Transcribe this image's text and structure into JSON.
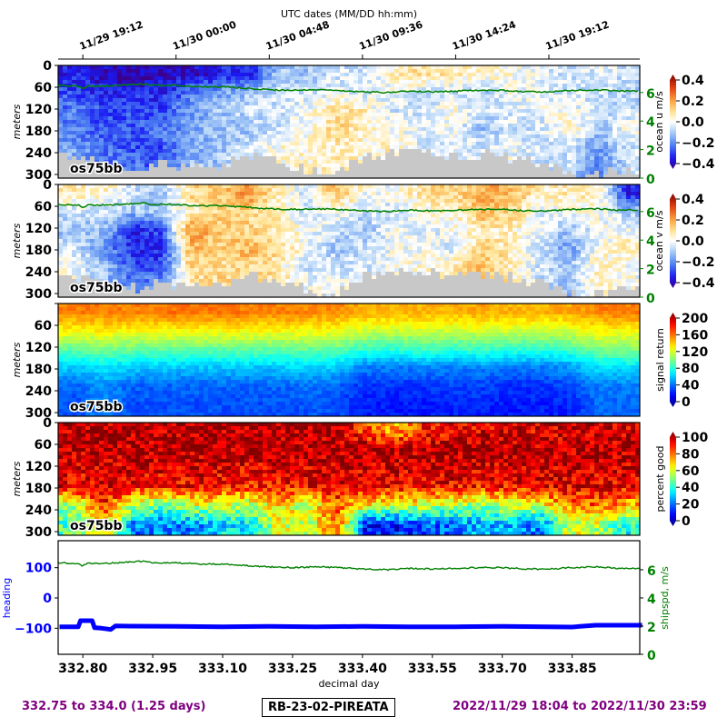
{
  "header": {
    "top_axis_title": "UTC dates (MM/DD hh:mm)",
    "date_ticks": [
      "11/29 19:12",
      "11/30 00:00",
      "11/30 04:48",
      "11/30 09:36",
      "11/30 14:24",
      "11/30 19:12"
    ]
  },
  "footer": {
    "range_text": "332.75 to 334.0 (1.25 days)",
    "cruise": "RB-23-02-PIREATA",
    "dates_text": "2022/11/29 18:04 to 2022/11/30 23:59"
  },
  "colors": {
    "green": "#008000",
    "blue": "#0000ff",
    "purple": "#800080",
    "nodata": "#c8c8c8"
  },
  "chart_data": [
    {
      "type": "heatmap",
      "title": "ocean u",
      "instrument": "os75bb",
      "ylabel": "meters",
      "colorbar_label": "ocean u m/s",
      "clim": [
        -0.4,
        0.4
      ],
      "colorbar_ticks": [
        "0.4",
        "0.2",
        "0.0",
        "−0.2",
        "−0.4"
      ],
      "right_axis": {
        "ticks": [
          "0",
          "2",
          "4",
          "6"
        ]
      },
      "depth_ticks": [
        "0",
        "60",
        "120",
        "180",
        "240",
        "300"
      ],
      "depth_bins": [
        25,
        75,
        125,
        175,
        225,
        280
      ],
      "ylim": [
        310,
        0
      ],
      "values": [
        [
          -0.3,
          -0.25,
          -0.2,
          -0.2,
          -0.15,
          -0.1
        ],
        [
          -0.35,
          -0.3,
          -0.25,
          -0.25,
          -0.2,
          -0.2
        ],
        [
          -0.38,
          -0.3,
          -0.25,
          -0.25,
          -0.25,
          -0.2
        ],
        [
          -0.35,
          -0.3,
          -0.25,
          -0.2,
          -0.25,
          -0.25
        ],
        [
          -0.35,
          -0.2,
          -0.15,
          -0.15,
          -0.15,
          -0.1
        ],
        [
          -0.3,
          -0.15,
          -0.1,
          -0.1,
          -0.1,
          -0.1
        ],
        [
          -0.3,
          -0.1,
          -0.05,
          -0.1,
          -0.05,
          0
        ],
        [
          -0.1,
          -0.05,
          -0.05,
          -0.05,
          0.02,
          0.02
        ],
        [
          -0.1,
          -0.05,
          0,
          0,
          0.03,
          0.03
        ],
        [
          -0.05,
          0,
          0.08,
          0.1,
          0.05,
          0.05
        ],
        [
          -0.05,
          -0.05,
          0.05,
          0.05,
          0.02,
          0.05
        ],
        [
          0.05,
          0,
          -0.05,
          0,
          0.05,
          0.05
        ],
        [
          0.08,
          -0.05,
          -0.05,
          -0.02,
          -0.05,
          0
        ],
        [
          0.05,
          -0.05,
          0.02,
          0,
          -0.02,
          0
        ],
        [
          0.03,
          -0.08,
          -0.05,
          -0.1,
          -0.05,
          -0.05
        ],
        [
          0.02,
          0,
          -0.03,
          -0.05,
          -0.02,
          0
        ],
        [
          -0.03,
          -0.02,
          -0.02,
          -0.05,
          -0.05,
          -0.05
        ],
        [
          -0.05,
          -0.05,
          0,
          0.05,
          -0.05,
          -0.05
        ],
        [
          -0.03,
          -0.05,
          -0.05,
          -0.1,
          -0.15,
          -0.2
        ],
        [
          -0.05,
          -0.08,
          -0.05,
          0,
          -0.05,
          -0.05
        ]
      ]
    },
    {
      "type": "heatmap",
      "title": "ocean v",
      "instrument": "os75bb",
      "ylabel": "meters",
      "colorbar_label": "ocean v m/s",
      "clim": [
        -0.4,
        0.4
      ],
      "colorbar_ticks": [
        "0.4",
        "0.2",
        "0.0",
        "−0.2",
        "−0.4"
      ],
      "right_axis": {
        "ticks": [
          "0",
          "2",
          "4",
          "6"
        ]
      },
      "depth_ticks": [
        "0",
        "60",
        "120",
        "180",
        "240",
        "300"
      ],
      "depth_bins": [
        25,
        75,
        125,
        175,
        225,
        280
      ],
      "ylim": [
        310,
        0
      ],
      "values": [
        [
          0.05,
          -0.05,
          -0.1,
          -0.05,
          0,
          0
        ],
        [
          0.05,
          -0.05,
          -0.1,
          -0.15,
          -0.1,
          -0.1
        ],
        [
          -0.05,
          -0.1,
          -0.3,
          -0.3,
          -0.25,
          -0.2
        ],
        [
          -0.1,
          -0.1,
          -0.25,
          -0.3,
          -0.25,
          -0.15
        ],
        [
          0.1,
          0.05,
          0.2,
          0.15,
          0.1,
          0.05
        ],
        [
          0.1,
          0.1,
          0.12,
          0.1,
          0.08,
          0.1
        ],
        [
          0.2,
          0.1,
          0.1,
          0.15,
          0.1,
          0.1
        ],
        [
          0.05,
          0.05,
          0.05,
          0.1,
          0.05,
          0.1
        ],
        [
          -0.05,
          -0.05,
          0,
          0,
          -0.05,
          0
        ],
        [
          0.15,
          0,
          -0.05,
          -0.1,
          -0.05,
          0
        ],
        [
          0,
          -0.05,
          -0.1,
          -0.05,
          -0.05,
          0
        ],
        [
          0,
          -0.05,
          0,
          0,
          0,
          0
        ],
        [
          0.08,
          0.02,
          -0.05,
          0,
          0.02,
          0
        ],
        [
          0.1,
          0.02,
          0,
          -0.05,
          0.05,
          0.1
        ],
        [
          0.15,
          0.15,
          0.05,
          0.1,
          0.15,
          0.15
        ],
        [
          0.15,
          0.1,
          0.05,
          0.05,
          0.05,
          0.05
        ],
        [
          0.05,
          -0.02,
          -0.02,
          -0.05,
          -0.05,
          -0.05
        ],
        [
          0.05,
          0,
          -0.1,
          -0.15,
          -0.1,
          -0.1
        ],
        [
          0.05,
          0.02,
          0,
          0,
          0.05,
          0.05
        ],
        [
          -0.3,
          -0.1,
          0,
          0.05,
          0,
          0
        ]
      ]
    },
    {
      "type": "heatmap",
      "title": "signal return",
      "instrument": "os75bb",
      "ylabel": "meters",
      "colorbar_label": "signal return",
      "clim": [
        0,
        200
      ],
      "colorbar_ticks": [
        "200",
        "160",
        "120",
        "80",
        "40",
        "0"
      ],
      "depth_ticks": [
        "",
        "60",
        "120",
        "180",
        "240",
        "300"
      ],
      "depth_bins": [
        25,
        75,
        125,
        175,
        225,
        280
      ],
      "ylim": [
        310,
        0
      ],
      "values": [
        [
          150,
          125,
          95,
          65,
          45,
          40
        ],
        [
          150,
          128,
          100,
          72,
          55,
          50
        ],
        [
          150,
          125,
          95,
          65,
          45,
          40
        ],
        [
          152,
          125,
          95,
          65,
          45,
          40
        ],
        [
          152,
          125,
          95,
          65,
          45,
          40
        ],
        [
          152,
          125,
          95,
          65,
          45,
          40
        ],
        [
          150,
          125,
          95,
          65,
          45,
          40
        ],
        [
          150,
          125,
          95,
          65,
          45,
          40
        ],
        [
          148,
          125,
          95,
          68,
          48,
          42
        ],
        [
          148,
          122,
          95,
          65,
          45,
          40
        ],
        [
          140,
          115,
          85,
          50,
          35,
          30
        ],
        [
          140,
          115,
          85,
          50,
          35,
          30
        ],
        [
          140,
          118,
          88,
          52,
          35,
          30
        ],
        [
          140,
          115,
          85,
          50,
          38,
          32
        ],
        [
          142,
          118,
          88,
          52,
          38,
          32
        ],
        [
          140,
          115,
          85,
          50,
          35,
          30
        ],
        [
          140,
          115,
          85,
          50,
          35,
          30
        ],
        [
          142,
          118,
          88,
          55,
          38,
          32
        ],
        [
          150,
          125,
          100,
          70,
          50,
          45
        ],
        [
          150,
          125,
          100,
          70,
          50,
          45
        ]
      ]
    },
    {
      "type": "heatmap",
      "title": "percent good",
      "instrument": "os75bb",
      "ylabel": "meters",
      "colorbar_label": "percent good",
      "clim": [
        0,
        100
      ],
      "colorbar_ticks": [
        "100",
        "80",
        "60",
        "40",
        "20",
        "0"
      ],
      "depth_ticks": [
        "0",
        "60",
        "120",
        "180",
        "240",
        "300"
      ],
      "depth_bins": [
        25,
        75,
        125,
        175,
        225,
        280
      ],
      "ylim": [
        310,
        0
      ],
      "values": [
        [
          95,
          95,
          90,
          90,
          55,
          45
        ],
        [
          95,
          95,
          92,
          90,
          85,
          70
        ],
        [
          95,
          95,
          92,
          88,
          60,
          25
        ],
        [
          95,
          95,
          92,
          85,
          50,
          25
        ],
        [
          95,
          95,
          92,
          88,
          60,
          25
        ],
        [
          95,
          95,
          92,
          85,
          60,
          35
        ],
        [
          95,
          95,
          90,
          85,
          55,
          35
        ],
        [
          95,
          95,
          92,
          85,
          70,
          60
        ],
        [
          95,
          95,
          92,
          88,
          55,
          55
        ],
        [
          95,
          95,
          92,
          88,
          80,
          80
        ],
        [
          80,
          95,
          92,
          88,
          65,
          15
        ],
        [
          70,
          95,
          92,
          88,
          60,
          15
        ],
        [
          85,
          95,
          92,
          88,
          60,
          20
        ],
        [
          90,
          95,
          92,
          88,
          55,
          25
        ],
        [
          90,
          95,
          92,
          85,
          55,
          30
        ],
        [
          90,
          95,
          92,
          88,
          60,
          30
        ],
        [
          90,
          95,
          92,
          88,
          60,
          25
        ],
        [
          92,
          95,
          92,
          90,
          75,
          60
        ],
        [
          92,
          95,
          92,
          90,
          80,
          55
        ],
        [
          92,
          95,
          92,
          88,
          70,
          40
        ]
      ]
    },
    {
      "type": "line",
      "xlabel": "decimal day",
      "ylabel": "heading",
      "y2label": "shipspd, m/s",
      "heading_ticks": [
        "100",
        "0",
        "−100"
      ],
      "shipspd_ticks": [
        "0",
        "2",
        "4",
        "6"
      ],
      "x_ticks": [
        "332.80",
        "332.95",
        "333.10",
        "333.25",
        "333.40",
        "333.55",
        "333.70",
        "333.85"
      ],
      "xlim": [
        332.747,
        333.995
      ],
      "ylim": [
        -186,
        189
      ],
      "y2lim": [
        0,
        8.06
      ],
      "series": [
        {
          "name": "heading",
          "color": "#0000ff",
          "x": [
            332.75,
            332.79,
            332.795,
            332.82,
            332.825,
            332.84,
            332.86,
            332.87,
            332.9,
            333.0,
            333.1,
            333.2,
            333.3,
            333.4,
            333.5,
            333.6,
            333.7,
            333.8,
            333.85,
            333.88,
            333.9,
            334.0
          ],
          "y": [
            -95,
            -95,
            -75,
            -75,
            -98,
            -100,
            -104,
            -92,
            -93,
            -94,
            -95,
            -94,
            -95,
            -94,
            -95,
            -95,
            -94,
            -95,
            -96,
            -92,
            -90,
            -90
          ]
        },
        {
          "name": "shipspd",
          "color": "#008000",
          "x": [
            332.75,
            332.79,
            332.8,
            332.81,
            332.85,
            332.9,
            332.93,
            332.95,
            333.0,
            333.05,
            333.1,
            333.15,
            333.2,
            333.25,
            333.3,
            333.35,
            333.4,
            333.45,
            333.5,
            333.55,
            333.6,
            333.65,
            333.7,
            333.75,
            333.8,
            333.85,
            333.9,
            333.95,
            334.0
          ],
          "y": [
            6.5,
            6.45,
            6.25,
            6.45,
            6.45,
            6.55,
            6.6,
            6.5,
            6.5,
            6.4,
            6.4,
            6.3,
            6.2,
            6.15,
            6.2,
            6.15,
            6.05,
            6.0,
            6.1,
            6.05,
            6.1,
            6.15,
            6.15,
            6.05,
            6.05,
            6.15,
            6.2,
            6.1,
            6.1
          ]
        }
      ]
    }
  ],
  "column_start_day": 332.75,
  "column_width_day": 0.0625,
  "valid_bottom_depth_m": [
    250,
    275,
    285,
    270,
    285,
    280,
    250,
    265,
    290,
    300,
    250,
    240,
    245,
    250,
    245,
    255,
    270,
    300,
    300,
    290
  ]
}
